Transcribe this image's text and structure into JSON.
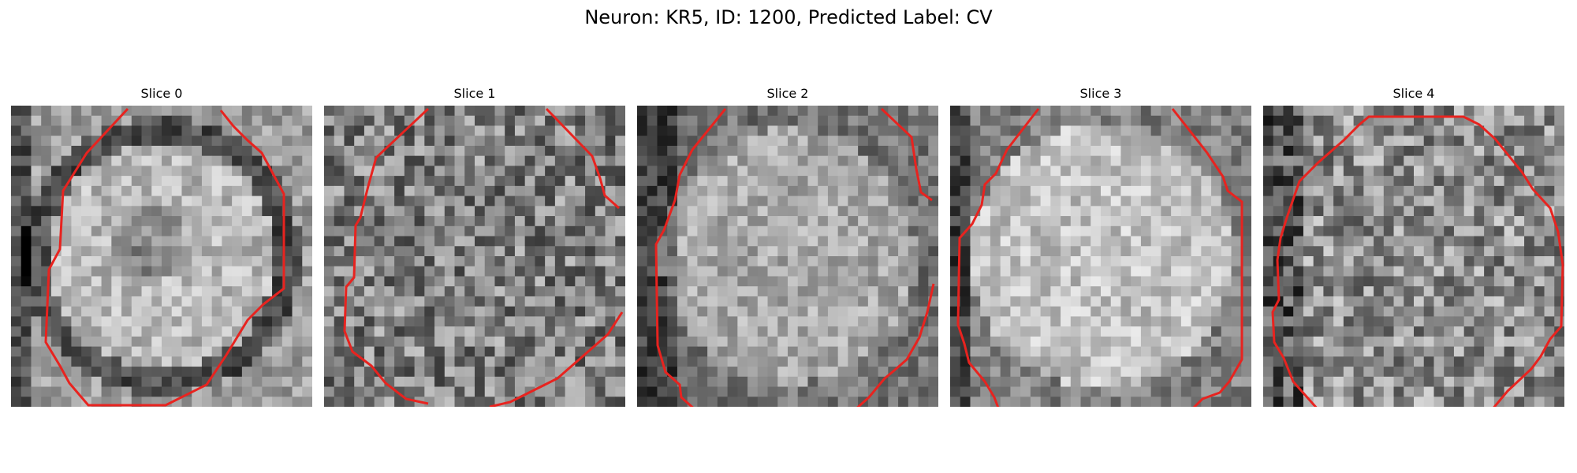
{
  "figure": {
    "title": "Neuron: KR5, ID: 1200, Predicted Label: CV"
  },
  "slices": [
    {
      "label": "Slice 0",
      "seed": 11,
      "bright_center": 0.74,
      "dark_ring": true,
      "pattern": "ring-dark-center"
    },
    {
      "label": "Slice 1",
      "seed": 23,
      "bright_center": 0.52,
      "dark_ring": false,
      "pattern": "noisy"
    },
    {
      "label": "Slice 2",
      "seed": 37,
      "bright_center": 0.66,
      "dark_ring": false,
      "pattern": "soft-center"
    },
    {
      "label": "Slice 3",
      "seed": 41,
      "bright_center": 0.78,
      "dark_ring": false,
      "pattern": "bright-disk"
    },
    {
      "label": "Slice 4",
      "seed": 59,
      "bright_center": 0.56,
      "dark_ring": true,
      "pattern": "noisy-dark-left"
    }
  ],
  "contour_color": "#e8231f"
}
